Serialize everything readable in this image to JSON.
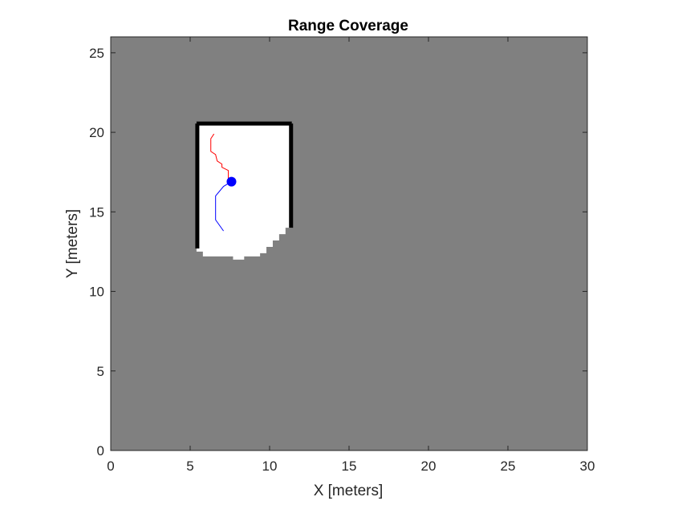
{
  "chart_data": {
    "type": "occupancy-map",
    "title": "Range Coverage",
    "xlabel": "X [meters]",
    "ylabel": "Y [meters]",
    "xlim": [
      0,
      30
    ],
    "ylim": [
      0,
      26
    ],
    "xticks": [
      0,
      5,
      10,
      15,
      20,
      25,
      30
    ],
    "yticks": [
      0,
      5,
      10,
      15,
      20,
      25
    ],
    "grid": false,
    "colors": {
      "unknown": "#808080",
      "free": "#ffffff",
      "occupied": "#000000",
      "past_path": "#ff0000",
      "planned_path": "#0000ff",
      "robot": "#0000ff"
    },
    "free_region": [
      [
        5.4,
        20.6
      ],
      [
        11.4,
        20.6
      ],
      [
        11.4,
        14.0
      ],
      [
        11.0,
        14.0
      ],
      [
        11.0,
        13.6
      ],
      [
        10.6,
        13.6
      ],
      [
        10.6,
        13.2
      ],
      [
        10.2,
        13.2
      ],
      [
        10.2,
        12.8
      ],
      [
        9.8,
        12.8
      ],
      [
        9.8,
        12.4
      ],
      [
        9.4,
        12.4
      ],
      [
        9.4,
        12.2
      ],
      [
        8.4,
        12.2
      ],
      [
        8.4,
        12.0
      ],
      [
        7.7,
        12.0
      ],
      [
        7.7,
        12.2
      ],
      [
        5.8,
        12.2
      ],
      [
        5.8,
        12.5
      ],
      [
        5.4,
        12.5
      ]
    ],
    "walls": [
      {
        "name": "top-wall",
        "x": [
          5.4,
          11.4
        ],
        "y": [
          20.55,
          20.55
        ]
      },
      {
        "name": "left-wall",
        "x": [
          5.45,
          5.45
        ],
        "y": [
          12.7,
          20.55
        ]
      },
      {
        "name": "right-wall",
        "x": [
          11.35,
          11.35
        ],
        "y": [
          14.0,
          20.55
        ]
      }
    ],
    "series": [
      {
        "key": "past_path",
        "x": [
          6.5,
          6.3,
          6.3,
          6.6,
          6.7,
          7.0,
          7.0,
          7.4,
          7.4,
          7.6
        ],
        "y": [
          19.9,
          19.6,
          18.8,
          18.6,
          18.2,
          18.0,
          17.8,
          17.6,
          17.1,
          16.9
        ]
      },
      {
        "key": "planned_path",
        "x": [
          7.6,
          7.1,
          6.6,
          6.6,
          6.6,
          7.1
        ],
        "y": [
          16.9,
          16.6,
          16.0,
          15.0,
          14.5,
          13.8
        ]
      }
    ],
    "robot": {
      "x": 7.6,
      "y": 16.9
    }
  }
}
